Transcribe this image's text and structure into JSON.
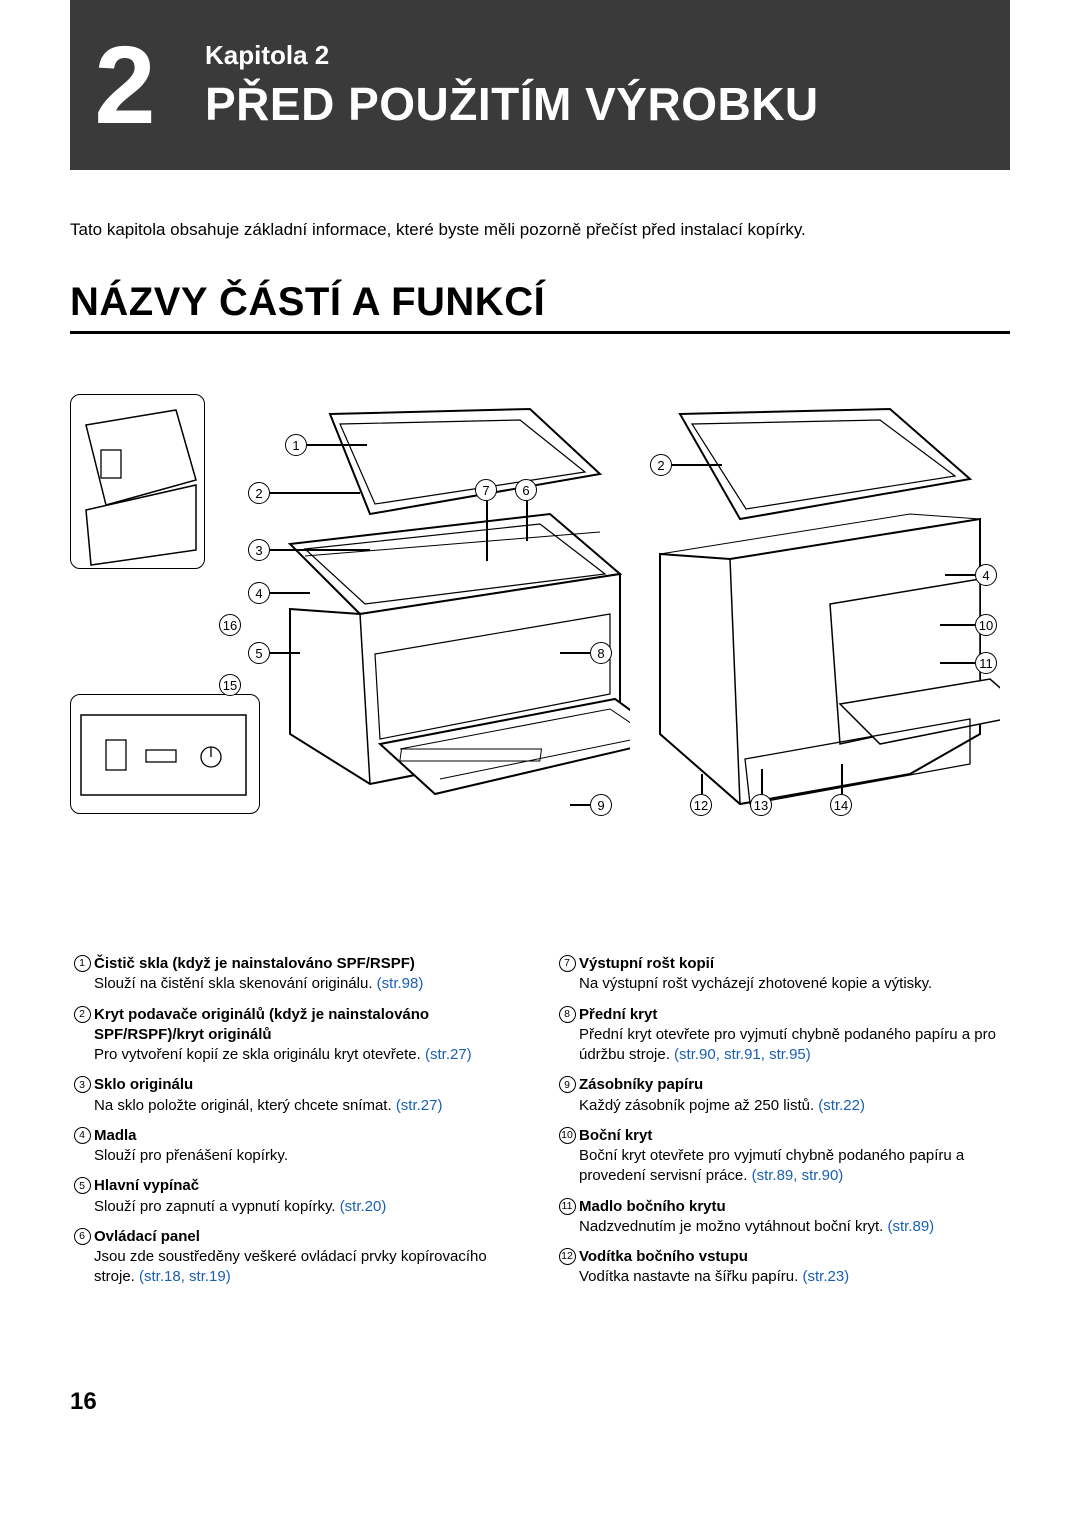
{
  "header": {
    "chapter_number": "2",
    "kapitola": "Kapitola 2",
    "title": "PŘED POUŽITÍM VÝROBKU"
  },
  "intro": "Tato kapitola obsahuje základní informace, které byste měli pozorně přečíst před instalací kopírky.",
  "section_title": "NÁZVY ČÁSTÍ A FUNKCÍ",
  "diagram": {
    "callouts_left": [
      "1",
      "2",
      "3",
      "4",
      "5",
      "6",
      "7",
      "8",
      "9"
    ],
    "callouts_right": [
      "2",
      "4",
      "10",
      "11",
      "12",
      "13",
      "14"
    ],
    "callouts_inset": [
      "15",
      "16"
    ]
  },
  "parts_left": [
    {
      "num": "1",
      "title": "Čistič skla (když je nainstalováno SPF/RSPF)",
      "desc": "Slouží na čistění skla skenování originálu. ",
      "link": "(str.98)"
    },
    {
      "num": "2",
      "title": "Kryt podavače originálů (když je nainstalováno SPF/RSPF)/kryt originálů",
      "desc": "Pro vytvoření kopií ze skla originálu kryt otevřete. ",
      "link": "(str.27)"
    },
    {
      "num": "3",
      "title": "Sklo originálu",
      "desc": "Na sklo položte originál, který chcete snímat. ",
      "link": "(str.27)"
    },
    {
      "num": "4",
      "title": "Madla",
      "desc": "Slouží pro přenášení kopírky.",
      "link": ""
    },
    {
      "num": "5",
      "title": "Hlavní vypínač",
      "desc": "Slouží pro zapnutí a vypnutí kopírky. ",
      "link": "(str.20)"
    },
    {
      "num": "6",
      "title": "Ovládací panel",
      "desc": "Jsou zde soustředěny veškeré ovládací prvky kopírovacího stroje. ",
      "link": "(str.18, str.19)"
    }
  ],
  "parts_right": [
    {
      "num": "7",
      "title": "Výstupní rošt kopií",
      "desc": "Na výstupní rošt vycházejí zhotovené kopie a výtisky.",
      "link": ""
    },
    {
      "num": "8",
      "title": "Přední kryt",
      "desc": "Přední kryt otevřete pro vyjmutí chybně podaného papíru a pro údržbu stroje. ",
      "link": "(str.90, str.91, str.95)"
    },
    {
      "num": "9",
      "title": "Zásobníky papíru",
      "desc": "Každý zásobník pojme až 250 listů. ",
      "link": "(str.22)"
    },
    {
      "num": "10",
      "title": "Boční kryt",
      "desc": "Boční kryt otevřete pro vyjmutí chybně podaného papíru a provedení servisní práce. ",
      "link": "(str.89, str.90)"
    },
    {
      "num": "11",
      "title": "Madlo bočního krytu",
      "desc": "Nadzvednutím je možno vytáhnout boční kryt. ",
      "link": "(str.89)"
    },
    {
      "num": "12",
      "title": "Vodítka bočního vstupu",
      "desc": "Vodítka nastavte na šířku papíru. ",
      "link": "(str.23)"
    }
  ],
  "page_number": "16"
}
